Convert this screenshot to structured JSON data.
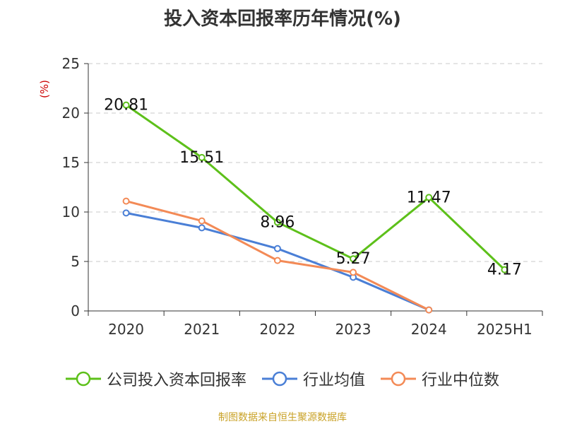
{
  "chart_data": {
    "type": "line",
    "title": "投入资本回报率历年情况(%)",
    "ylabel": "(%)",
    "xlabel": "",
    "categories": [
      "2020",
      "2021",
      "2022",
      "2023",
      "2024",
      "2025H1"
    ],
    "ylim": [
      0,
      25
    ],
    "yticks": [
      0,
      5,
      10,
      15,
      20,
      25
    ],
    "grid": "horizontal dashed",
    "legend_position": "bottom",
    "series": [
      {
        "name": "公司投入资本回报率",
        "color": "#5dc01a",
        "values": [
          20.81,
          15.51,
          8.96,
          5.27,
          11.47,
          4.17
        ],
        "labels": [
          "20.81",
          "15.51",
          "8.96",
          "5.27",
          "11.47",
          "4.17"
        ]
      },
      {
        "name": "行业均值",
        "color": "#4a7fd6",
        "values": [
          9.9,
          8.4,
          6.3,
          3.4,
          0.1,
          null
        ]
      },
      {
        "name": "行业中位数",
        "color": "#f38a56",
        "values": [
          11.1,
          9.1,
          5.1,
          3.9,
          0.1,
          null
        ]
      }
    ]
  },
  "footer": {
    "source": "制图数据来自恒生聚源数据库"
  }
}
